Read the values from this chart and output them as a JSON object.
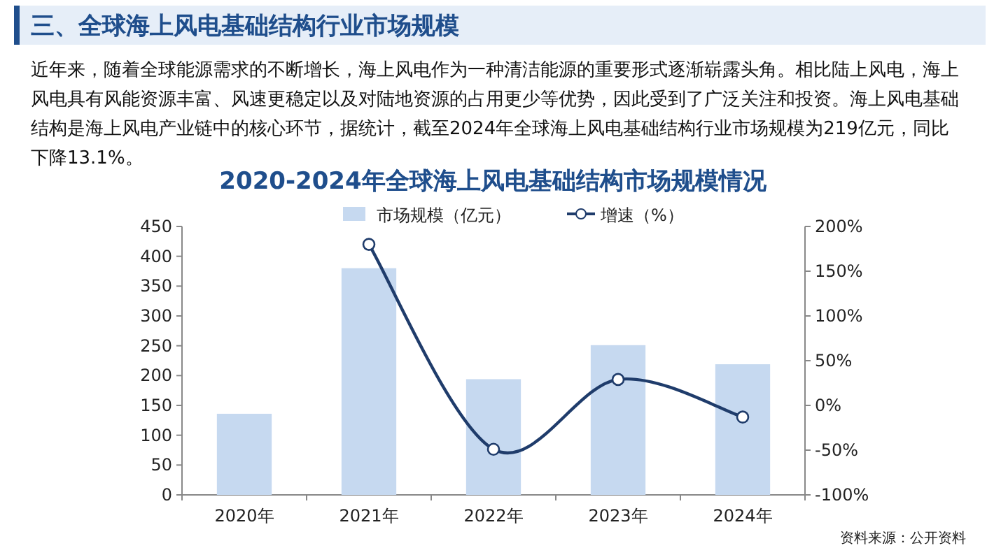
{
  "chart_data": {
    "type": "bar",
    "title": "2020-2024年全球海上风电基础结构市场规模情况",
    "annotations": [
      "三、全球海上风电基础结构行业市场规模",
      "近年来，随着全球能源需求的不断增长，海上风电作为一种清洁能源的重要形式逐渐崭露头角。相比陆上风电，海上风电具有风能资源丰富、风速更稳定以及对陆地资源的占用更少等优势，因此受到了广泛关注和投资。海上风电基础结构是海上风电产业链中的核心环节，据统计，截至2024年全球海上风电基础结构行业市场规模为219亿元，同比下降13.1%。",
      "资料来源：公开资料"
    ],
    "categories": [
      "2020年",
      "2021年",
      "2022年",
      "2023年",
      "2024年"
    ],
    "series": [
      {
        "name": "市场规模（亿元）",
        "color": "#c6d9f0",
        "values": [
          136,
          380,
          194,
          251,
          219
        ]
      },
      {
        "name": "增速（%）",
        "type": "line",
        "axis": "y2",
        "color": "#1f3c6b",
        "marker": "circle",
        "values": [
          null,
          180,
          -49,
          29,
          -13
        ]
      }
    ],
    "ylim": [
      0,
      450
    ],
    "yticks": [
      0,
      50,
      100,
      150,
      200,
      250,
      300,
      350,
      400,
      450
    ],
    "y2lim": [
      -100,
      200
    ],
    "y2ticks": [
      {
        "value": -100,
        "label": "-100%"
      },
      {
        "value": -50,
        "label": "-50%"
      },
      {
        "value": 0,
        "label": "0%"
      },
      {
        "value": 50,
        "label": "50%"
      },
      {
        "value": 100,
        "label": "100%"
      },
      {
        "value": 150,
        "label": "150%"
      },
      {
        "value": 200,
        "label": "200%"
      }
    ],
    "legend": "top",
    "grid": false
  }
}
